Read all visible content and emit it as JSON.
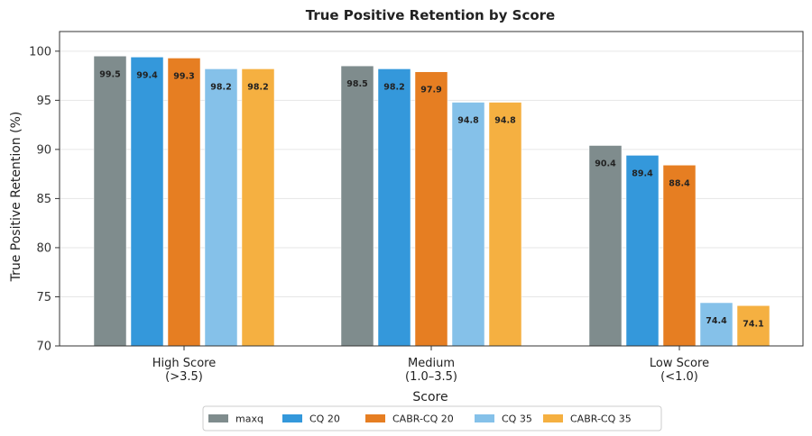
{
  "chart_data": {
    "type": "bar",
    "title": "True Positive Retention by Score",
    "xlabel": "Score",
    "ylabel": "True Positive Retention (%)",
    "ylim": [
      70,
      102
    ],
    "yticks": [
      70,
      75,
      80,
      85,
      90,
      95,
      100
    ],
    "grid": true,
    "legend_position": "bottom-center",
    "categories": [
      [
        "High Score",
        "(>3.5)"
      ],
      [
        "Medium",
        "(1.0–3.5)"
      ],
      [
        "Low Score",
        "(<1.0)"
      ]
    ],
    "series": [
      {
        "name": "maxq",
        "color": "#7f8c8d",
        "values": [
          99.5,
          98.5,
          90.4
        ]
      },
      {
        "name": "CQ 20",
        "color": "#3498db",
        "values": [
          99.4,
          98.2,
          89.4
        ]
      },
      {
        "name": "CABR-CQ 20",
        "color": "#e67e22",
        "values": [
          99.3,
          97.9,
          88.4
        ]
      },
      {
        "name": "CQ 35",
        "color": "#85c1e9",
        "values": [
          98.2,
          94.8,
          74.4
        ]
      },
      {
        "name": "CABR-CQ 35",
        "color": "#f5b041",
        "values": [
          98.2,
          94.8,
          74.1
        ]
      }
    ]
  }
}
